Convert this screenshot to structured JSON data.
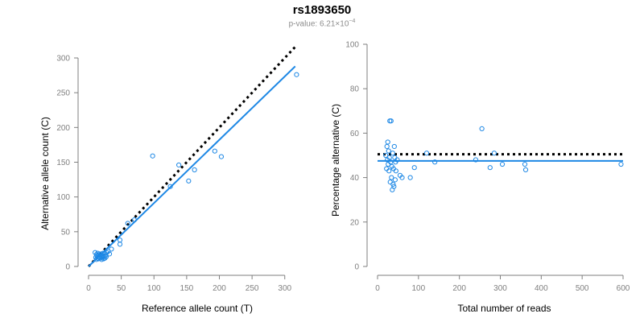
{
  "title": "rs1893650",
  "subtitle": {
    "label": "p-value: 6.21×10",
    "exponent": "−4"
  },
  "colors": {
    "series": "#1e88e5",
    "reference": "#000000",
    "axis": "#7f7f7f",
    "text": "#000000"
  },
  "chart_data": [
    {
      "type": "scatter",
      "xlabel": "Reference allele count (T)",
      "ylabel": "Alternative allele count (C)",
      "xlim": [
        0,
        320
      ],
      "ylim": [
        0,
        300
      ],
      "xticks": [
        0,
        50,
        100,
        150,
        200,
        250,
        300
      ],
      "yticks": [
        0,
        50,
        100,
        150,
        200,
        250,
        300
      ],
      "grid": false,
      "points": [
        [
          10,
          20
        ],
        [
          11,
          13
        ],
        [
          12,
          17
        ],
        [
          12,
          10
        ],
        [
          13,
          15
        ],
        [
          14,
          12
        ],
        [
          14,
          19
        ],
        [
          15,
          16
        ],
        [
          15,
          11
        ],
        [
          16,
          14
        ],
        [
          17,
          13
        ],
        [
          17,
          18
        ],
        [
          18,
          15
        ],
        [
          18,
          12
        ],
        [
          19,
          17
        ],
        [
          20,
          14
        ],
        [
          20,
          10
        ],
        [
          21,
          16
        ],
        [
          22,
          13
        ],
        [
          22,
          19
        ],
        [
          23,
          11
        ],
        [
          24,
          15
        ],
        [
          25,
          18
        ],
        [
          25,
          12
        ],
        [
          26,
          16
        ],
        [
          27,
          14
        ],
        [
          28,
          20
        ],
        [
          30,
          22
        ],
        [
          32,
          18
        ],
        [
          35,
          25
        ],
        [
          48,
          32
        ],
        [
          48,
          38
        ],
        [
          60,
          62
        ],
        [
          70,
          67
        ],
        [
          98,
          159
        ],
        [
          125,
          115
        ],
        [
          138,
          146
        ],
        [
          153,
          123
        ],
        [
          162,
          139
        ],
        [
          193,
          166
        ],
        [
          203,
          158
        ],
        [
          318,
          276
        ]
      ],
      "fit_line": {
        "from": [
          0,
          0
        ],
        "to": [
          316,
          288
        ]
      },
      "reference_line": {
        "from": [
          0,
          0
        ],
        "to": [
          316,
          316
        ]
      }
    },
    {
      "type": "scatter",
      "xlabel": "Total number of reads",
      "ylabel": "Percentage alternative (C)",
      "xlim": [
        0,
        600
      ],
      "ylim": [
        0,
        100
      ],
      "xticks": [
        0,
        100,
        200,
        300,
        400,
        500,
        600
      ],
      "yticks": [
        0,
        20,
        40,
        60,
        80,
        100
      ],
      "grid": false,
      "points": [
        [
          20,
          50
        ],
        [
          22,
          44
        ],
        [
          23,
          54
        ],
        [
          24,
          48
        ],
        [
          25,
          56
        ],
        [
          26,
          46
        ],
        [
          27,
          52
        ],
        [
          28,
          43
        ],
        [
          29,
          49
        ],
        [
          30,
          65.5
        ],
        [
          31,
          38
        ],
        [
          32,
          47
        ],
        [
          33,
          65.5
        ],
        [
          34,
          40
        ],
        [
          35,
          45
        ],
        [
          36,
          34.5
        ],
        [
          37,
          51
        ],
        [
          38,
          37
        ],
        [
          39,
          44
        ],
        [
          40,
          36
        ],
        [
          41,
          54
        ],
        [
          42,
          49
        ],
        [
          43,
          39
        ],
        [
          44,
          47
        ],
        [
          45,
          43
        ],
        [
          48,
          48
        ],
        [
          55,
          41
        ],
        [
          60,
          40
        ],
        [
          80,
          40
        ],
        [
          90,
          44.5
        ],
        [
          120,
          51
        ],
        [
          140,
          47
        ],
        [
          240,
          48
        ],
        [
          255,
          62
        ],
        [
          275,
          44.5
        ],
        [
          285,
          51
        ],
        [
          305,
          46
        ],
        [
          360,
          46
        ],
        [
          362,
          43.5
        ],
        [
          595,
          46
        ]
      ],
      "fit_line": {
        "from": [
          0,
          47.5
        ],
        "to": [
          600,
          47.5
        ]
      },
      "reference_line": {
        "from": [
          0,
          50.5
        ],
        "to": [
          600,
          50.5
        ]
      }
    }
  ]
}
